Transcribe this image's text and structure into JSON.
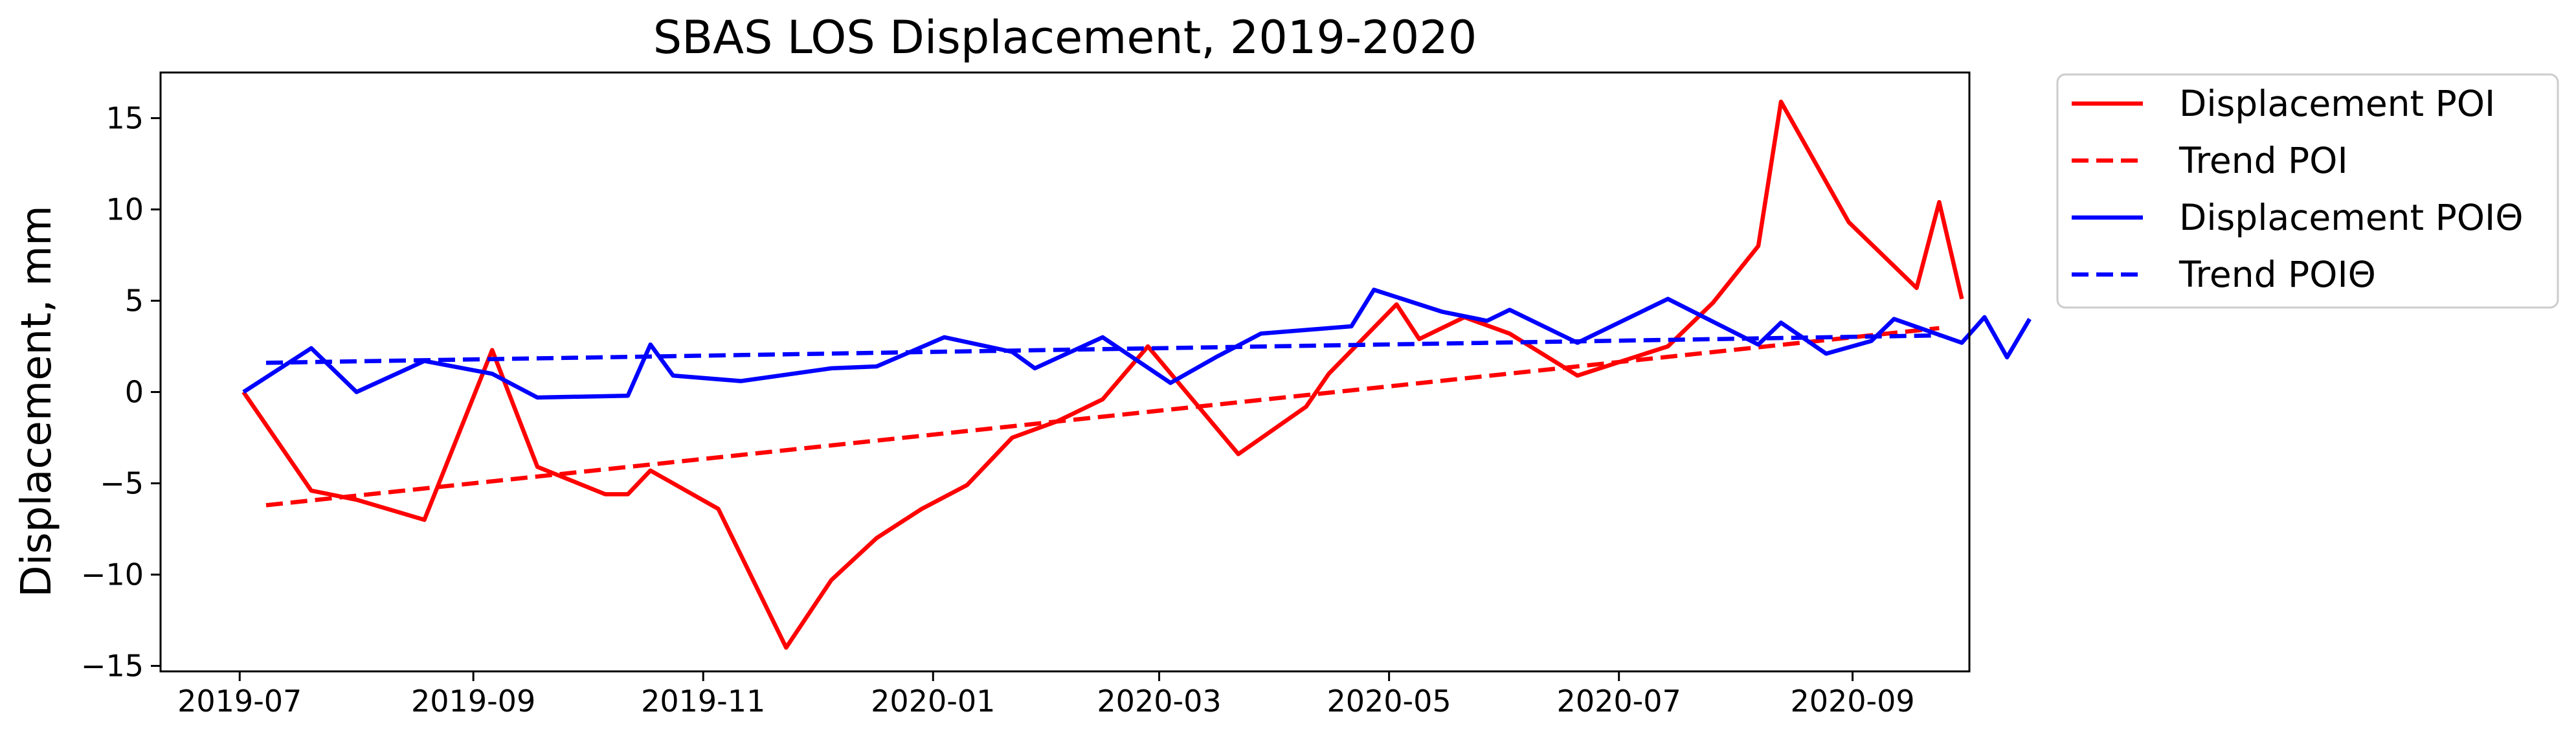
{
  "chart_data": {
    "type": "line",
    "title": "SBAS LOS Displacement, 2019-2020",
    "xlabel": "",
    "ylabel": "Displacement, mm",
    "xlim": [
      "2019-06-10",
      "2020-10-02"
    ],
    "ylim": [
      -15.3,
      17.5
    ],
    "x_ticks": [
      "2019-07",
      "2019-09",
      "2019-11",
      "2020-01",
      "2020-03",
      "2020-05",
      "2020-07",
      "2020-09"
    ],
    "y_ticks": [
      -15,
      -10,
      -5,
      0,
      5,
      10,
      15
    ],
    "grid": false,
    "legend": {
      "placement": "outside-top-right"
    },
    "series": [
      {
        "name": "Displacement POI",
        "color": "#ff0000",
        "style": "solid",
        "points": [
          [
            "2019-07-02",
            0.0
          ],
          [
            "2019-07-20",
            -5.4
          ],
          [
            "2019-08-01",
            -5.9
          ],
          [
            "2019-08-19",
            -7.0
          ],
          [
            "2019-09-06",
            2.3
          ],
          [
            "2019-09-18",
            -4.1
          ],
          [
            "2019-10-06",
            -5.6
          ],
          [
            "2019-10-12",
            -5.6
          ],
          [
            "2019-10-18",
            -4.3
          ],
          [
            "2019-11-05",
            -6.4
          ],
          [
            "2019-11-23",
            -14.0
          ],
          [
            "2019-12-05",
            -10.3
          ],
          [
            "2019-12-17",
            -8.0
          ],
          [
            "2019-12-29",
            -6.4
          ],
          [
            "2020-01-10",
            -5.1
          ],
          [
            "2020-01-22",
            -2.5
          ],
          [
            "2020-02-03",
            -1.6
          ],
          [
            "2020-02-15",
            -0.4
          ],
          [
            "2020-02-27",
            2.5
          ],
          [
            "2020-03-22",
            -3.4
          ],
          [
            "2020-04-09",
            -0.8
          ],
          [
            "2020-04-15",
            1.0
          ],
          [
            "2020-05-03",
            4.8
          ],
          [
            "2020-05-09",
            2.9
          ],
          [
            "2020-05-21",
            4.1
          ],
          [
            "2020-06-02",
            3.2
          ],
          [
            "2020-06-20",
            0.9
          ],
          [
            "2020-07-14",
            2.5
          ],
          [
            "2020-07-26",
            4.9
          ],
          [
            "2020-08-07",
            8.0
          ],
          [
            "2020-08-13",
            15.9
          ],
          [
            "2020-08-31",
            9.3
          ],
          [
            "2020-09-18",
            5.7
          ],
          [
            "2020-09-24",
            10.4
          ],
          [
            "2020-09-30",
            5.1
          ]
        ]
      },
      {
        "name": "Trend POI",
        "color": "#ff0000",
        "style": "dashed",
        "points": [
          [
            "2019-07-08",
            -6.2
          ],
          [
            "2020-09-24",
            3.5
          ]
        ]
      },
      {
        "name": "Displacement POIΘ",
        "color": "#0000ff",
        "style": "solid",
        "points": [
          [
            "2019-07-02",
            0.0
          ],
          [
            "2019-07-20",
            2.4
          ],
          [
            "2019-08-01",
            0.0
          ],
          [
            "2019-08-19",
            1.7
          ],
          [
            "2019-09-06",
            1.0
          ],
          [
            "2019-09-18",
            -0.3
          ],
          [
            "2019-10-12",
            -0.2
          ],
          [
            "2019-10-18",
            2.6
          ],
          [
            "2019-10-24",
            0.9
          ],
          [
            "2019-11-11",
            0.6
          ],
          [
            "2019-12-05",
            1.3
          ],
          [
            "2019-12-17",
            1.4
          ],
          [
            "2020-01-04",
            3.0
          ],
          [
            "2020-01-22",
            2.2
          ],
          [
            "2020-01-28",
            1.3
          ],
          [
            "2020-02-15",
            3.0
          ],
          [
            "2020-03-04",
            0.5
          ],
          [
            "2020-03-16",
            1.9
          ],
          [
            "2020-03-28",
            3.2
          ],
          [
            "2020-04-21",
            3.6
          ],
          [
            "2020-04-27",
            5.6
          ],
          [
            "2020-05-15",
            4.4
          ],
          [
            "2020-05-27",
            3.9
          ],
          [
            "2020-06-02",
            4.5
          ],
          [
            "2020-06-20",
            2.7
          ],
          [
            "2020-07-14",
            5.1
          ],
          [
            "2020-08-07",
            2.6
          ],
          [
            "2020-08-13",
            3.8
          ],
          [
            "2020-08-25",
            2.1
          ],
          [
            "2020-09-06",
            2.8
          ],
          [
            "2020-09-12",
            4.0
          ],
          [
            "2020-09-30",
            2.7
          ],
          [
            "2020-10-06",
            4.1
          ],
          [
            "2020-10-12",
            1.9
          ],
          [
            "2020-10-18",
            4.0
          ]
        ]
      },
      {
        "name": "Trend POIΘ",
        "color": "#0000ff",
        "style": "dashed",
        "points": [
          [
            "2019-07-08",
            1.6
          ],
          [
            "2020-09-24",
            3.1
          ]
        ]
      }
    ]
  }
}
